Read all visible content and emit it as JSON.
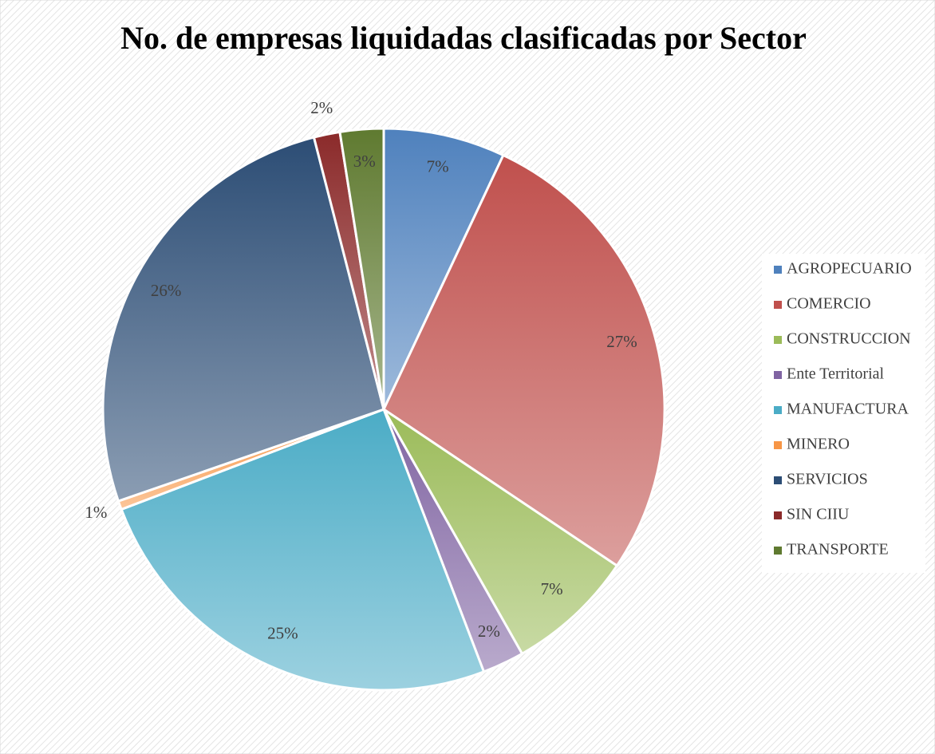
{
  "chart_data": {
    "type": "pie",
    "title": "No. de empresas liquidadas clasificadas por Sector",
    "categories": [
      "AGROPECUARIO",
      "COMERCIO",
      "CONSTRUCCION",
      "Ente Territorial",
      "MANUFACTURA",
      "MINERO",
      "SERVICIOS",
      "SIN CIIU",
      "TRANSPORTE"
    ],
    "values": [
      7.0,
      27.4,
      7.4,
      2.4,
      25.0,
      0.5,
      26.3,
      1.5,
      2.5
    ],
    "value_labels": [
      "7%",
      "27%",
      "7%",
      "2%",
      "25%",
      "1%",
      "26%",
      "2%",
      "3%"
    ],
    "colors": [
      "#4f81bd",
      "#c0504d",
      "#9bbb59",
      "#8064a2",
      "#4bacc6",
      "#f79646",
      "#2c4d75",
      "#8b2a2a",
      "#5f7a30"
    ],
    "legend": "right"
  }
}
